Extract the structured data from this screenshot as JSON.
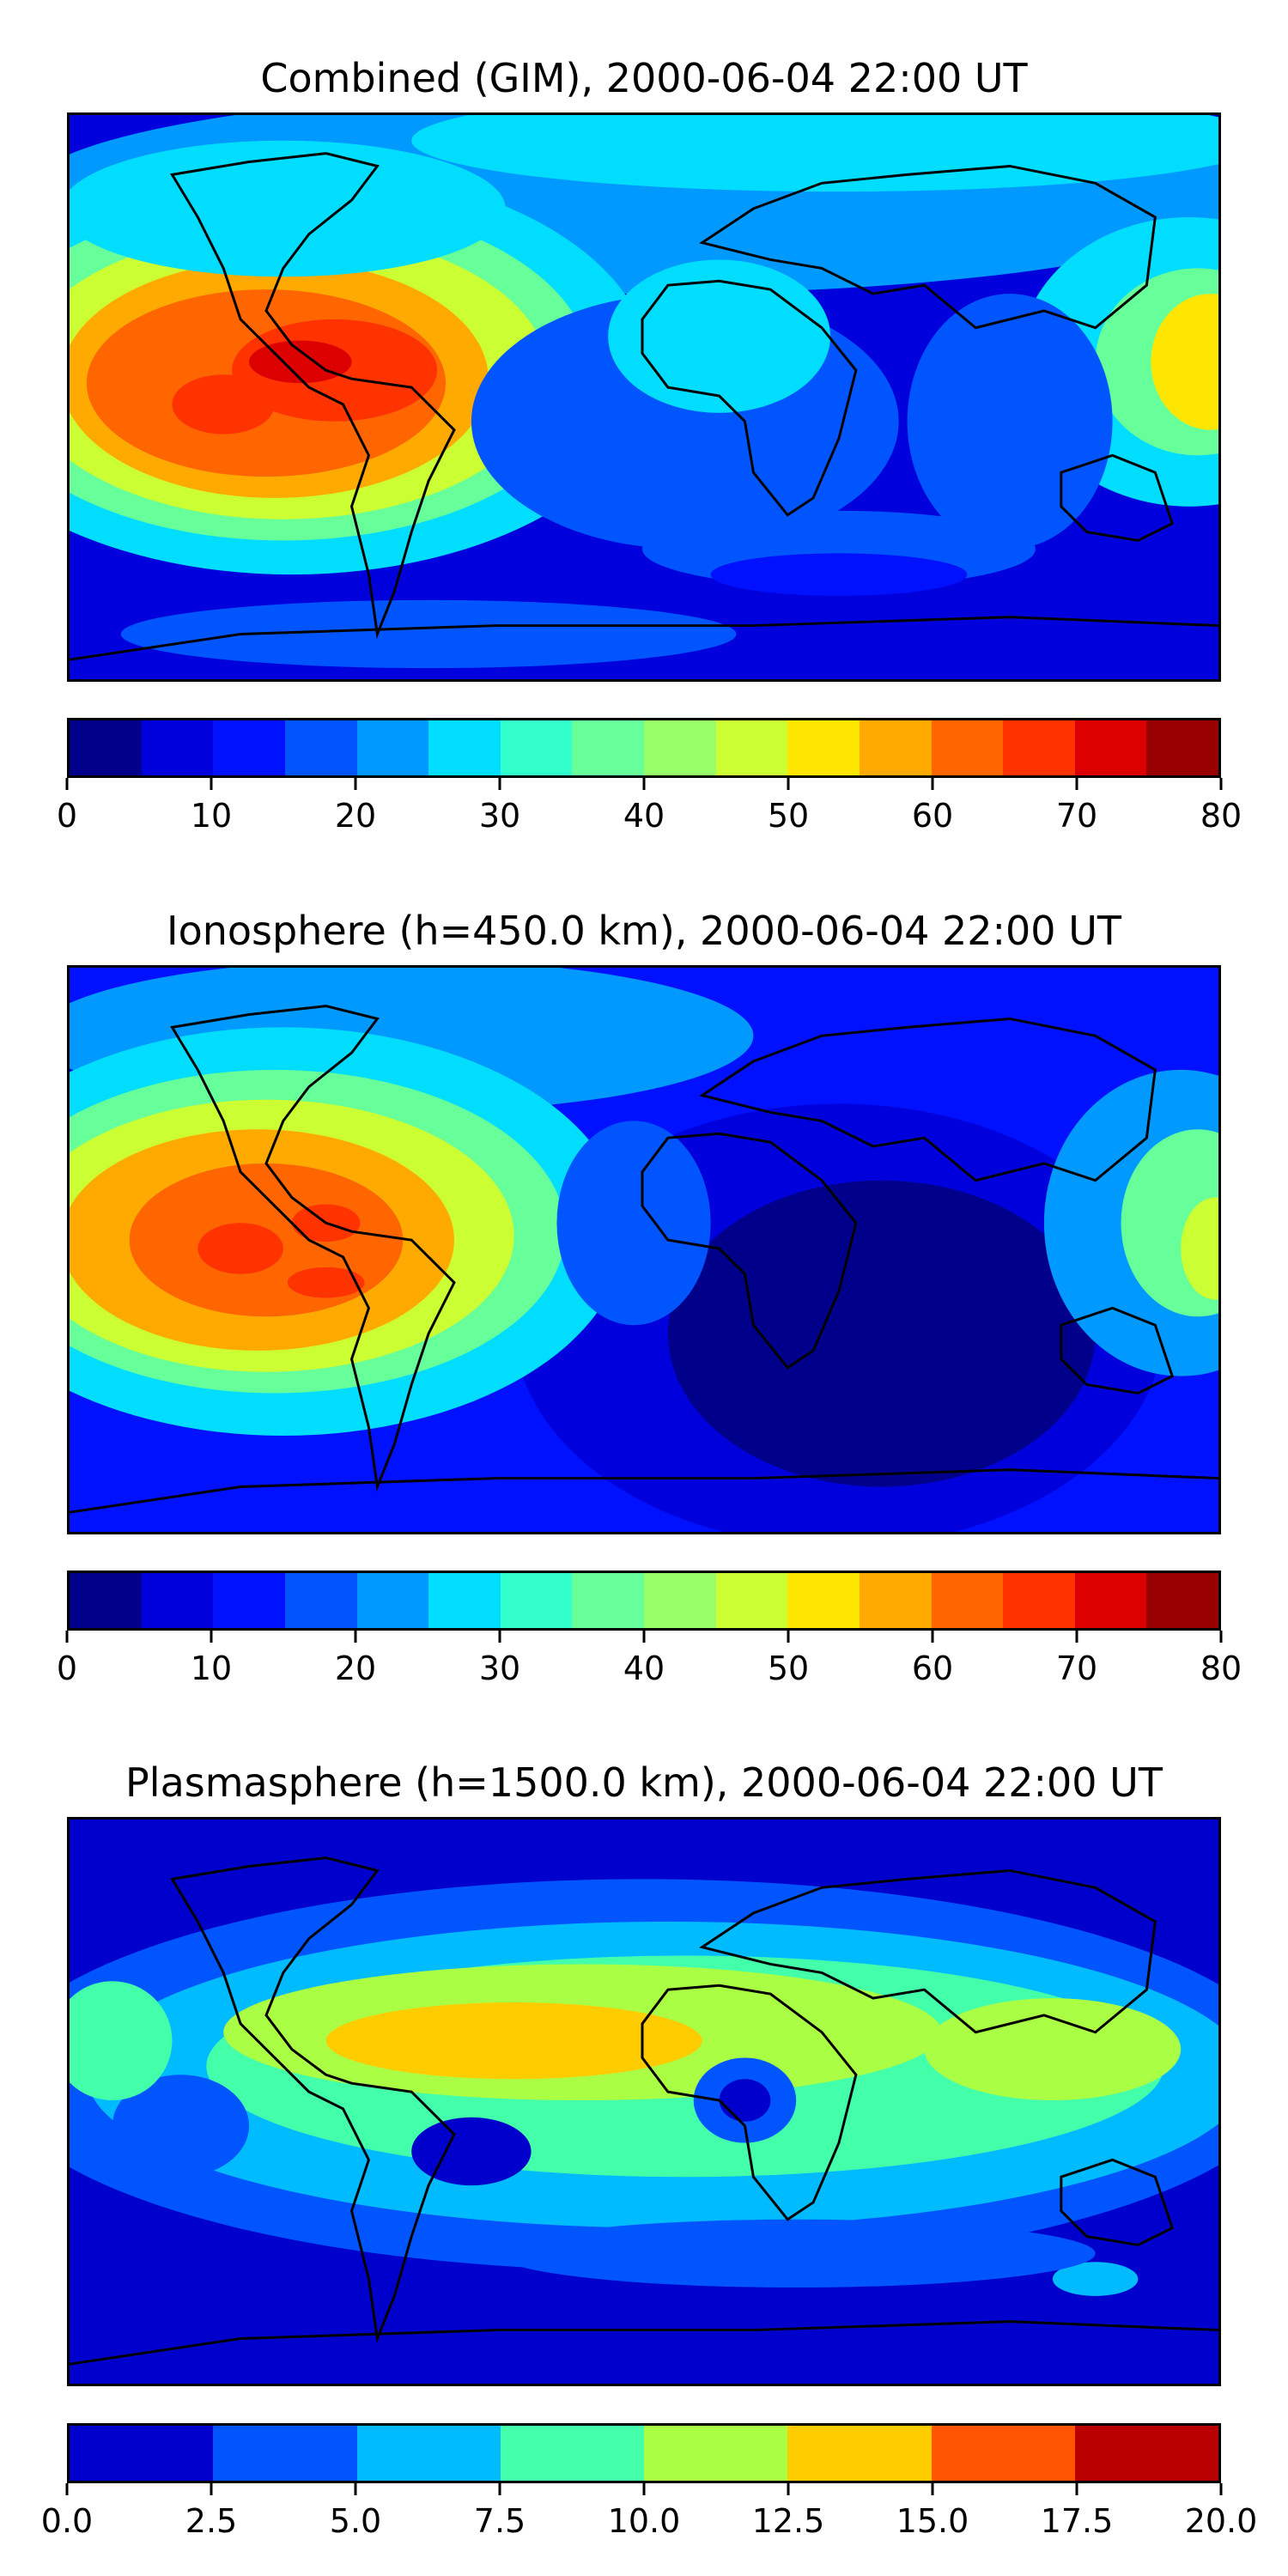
{
  "panels": [
    {
      "title": "Combined (GIM), 2000-06-04 22:00 UT",
      "colorbar": {
        "ticks": [
          "0",
          "10",
          "20",
          "30",
          "40",
          "50",
          "60",
          "70",
          "80"
        ],
        "colors": [
          "#00008b",
          "#0000dd",
          "#0011ff",
          "#0055ff",
          "#0099ff",
          "#00ddff",
          "#33ffcc",
          "#66ff99",
          "#99ff66",
          "#ccff33",
          "#ffe600",
          "#ffaa00",
          "#ff6600",
          "#ff3300",
          "#dd0000",
          "#990000"
        ]
      }
    },
    {
      "title": "Ionosphere  (h=450.0 km), 2000-06-04 22:00 UT",
      "colorbar": {
        "ticks": [
          "0",
          "10",
          "20",
          "30",
          "40",
          "50",
          "60",
          "70",
          "80"
        ],
        "colors": [
          "#00008b",
          "#0000dd",
          "#0011ff",
          "#0055ff",
          "#0099ff",
          "#00ddff",
          "#33ffcc",
          "#66ff99",
          "#99ff66",
          "#ccff33",
          "#ffe600",
          "#ffaa00",
          "#ff6600",
          "#ff3300",
          "#dd0000",
          "#990000"
        ]
      }
    },
    {
      "title": "Plasmasphere (h=1500.0 km), 2000-06-04 22:00 UT",
      "colorbar": {
        "ticks": [
          "0.0",
          "2.5",
          "5.0",
          "7.5",
          "10.0",
          "12.5",
          "15.0",
          "17.5",
          "20.0"
        ],
        "colors": [
          "#0000cc",
          "#0055ff",
          "#00bbff",
          "#44ffaa",
          "#aaff44",
          "#ffcc00",
          "#ff5500",
          "#bb0000"
        ]
      }
    }
  ]
}
